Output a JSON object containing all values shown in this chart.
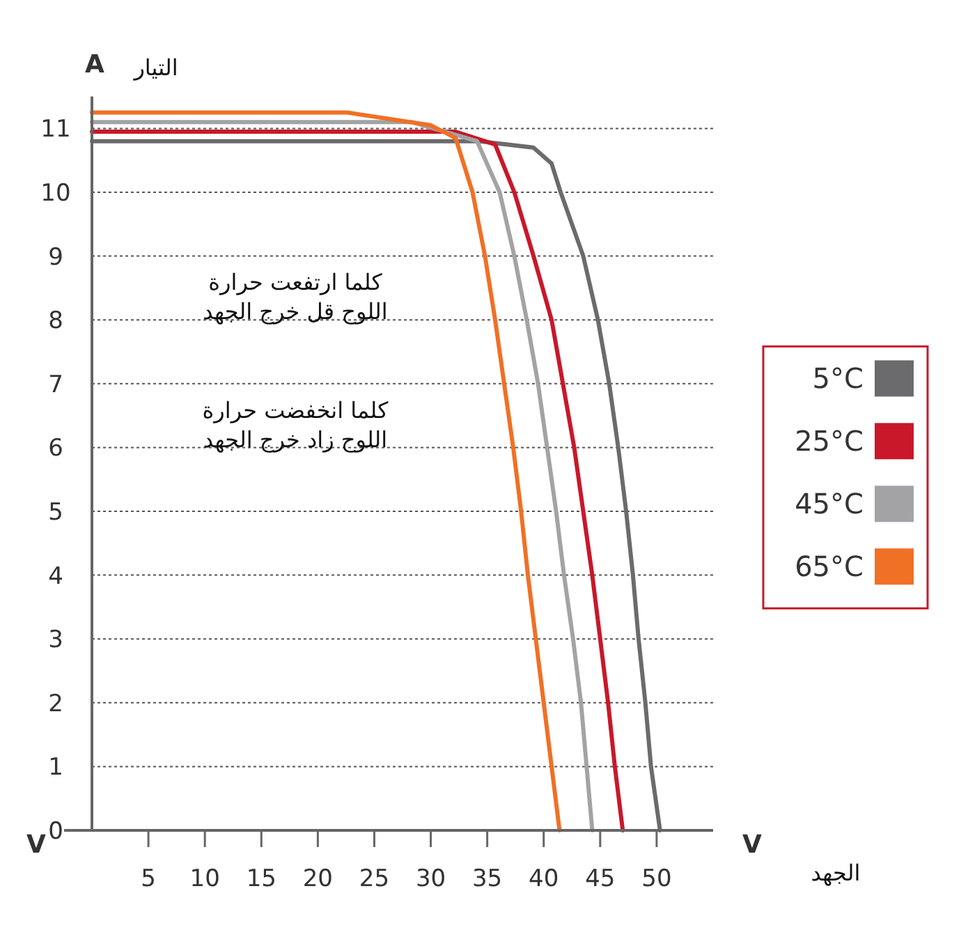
{
  "chart_data": {
    "type": "line",
    "xlabel": "الجهد",
    "ylabel": "التيار",
    "xlim": [
      0,
      55
    ],
    "xticks": [
      5,
      10,
      15,
      20,
      25,
      30,
      35,
      40,
      45,
      50
    ],
    "ylim": [
      0,
      11.5
    ],
    "yticks": [
      0,
      1,
      2,
      3,
      4,
      5,
      6,
      7,
      8,
      9,
      10,
      11
    ],
    "grid": "y",
    "legend": "right",
    "line_style": "solid",
    "annotations": [
      "A",
      "V",
      "V",
      "كلما ارتفعت حرارة\nاللوح قل خرج الجهد",
      "كلما انخفضت حرارة\nاللوح زاد خرج الجهد"
    ],
    "series": [
      {
        "name": "5°C",
        "color": "#6b6b6d",
        "x": [
          0,
          34.3,
          39.1,
          40.7,
          41.5,
          43.5,
          44.8,
          45.8,
          46.6,
          47.3,
          47.9,
          48.4,
          49.0,
          49.5,
          50.3
        ],
        "values": [
          10.8,
          10.8,
          10.7,
          10.45,
          10,
          9,
          8,
          7,
          6,
          5,
          4,
          3,
          2,
          1,
          0
        ]
      },
      {
        "name": "25°C",
        "color": "#c8182a",
        "x": [
          0,
          32.2,
          35.7,
          37.4,
          39.1,
          40.7,
          41.7,
          42.7,
          43.5,
          44.3,
          45.0,
          45.7,
          46.3,
          47.0
        ],
        "values": [
          10.95,
          10.95,
          10.75,
          10,
          9,
          8,
          7,
          6,
          5,
          4,
          3,
          2,
          1,
          0
        ]
      },
      {
        "name": "45°C",
        "color": "#a3a3a5",
        "x": [
          0,
          28.3,
          34.1,
          36.1,
          37.4,
          38.5,
          39.5,
          40.3,
          41.1,
          41.8,
          42.6,
          43.3,
          43.8,
          44.3
        ],
        "values": [
          11.1,
          11.1,
          10.8,
          10,
          9,
          8,
          7,
          6,
          5,
          4,
          3,
          2,
          1,
          0
        ]
      },
      {
        "name": "65°C",
        "color": "#f07025",
        "x": [
          0,
          22.6,
          30,
          32.2,
          33.7,
          34.8,
          35.7,
          36.5,
          37.3,
          38.0,
          38.6,
          39.3,
          40.0,
          40.7,
          41.4
        ],
        "values": [
          11.25,
          11.25,
          11.05,
          10.85,
          10,
          9,
          8,
          7,
          6,
          5,
          4,
          3,
          2,
          1,
          0
        ]
      }
    ]
  }
}
